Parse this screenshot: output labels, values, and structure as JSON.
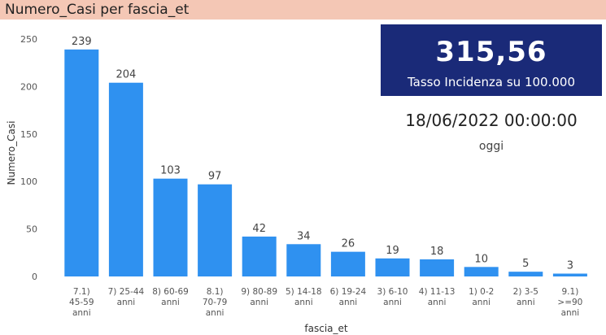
{
  "header": {
    "title": "Numero_Casi per fascia_et"
  },
  "kpi": {
    "value": "315,56",
    "label": "Tasso Incidenza su 100.000"
  },
  "date": {
    "value": "18/06/2022 00:00:00",
    "label": "oggi"
  },
  "colors": {
    "bar": "#2f91f0",
    "title_bg": "#f4c7b5",
    "kpi_bg": "#1a2a78"
  },
  "chart_data": {
    "type": "bar",
    "title": "",
    "xlabel": "fascia_et",
    "ylabel": "Numero_Casi",
    "ylim": [
      0,
      250
    ],
    "yticks": [
      0,
      50,
      100,
      150,
      200,
      250
    ],
    "grid": false,
    "categories": [
      [
        "7.1)",
        "45-59",
        "anni"
      ],
      [
        "7) 25-44",
        "anni"
      ],
      [
        "8) 60-69",
        "anni"
      ],
      [
        "8.1)",
        "70-79",
        "anni"
      ],
      [
        "9) 80-89",
        "anni"
      ],
      [
        "5) 14-18",
        "anni"
      ],
      [
        "6) 19-24",
        "anni"
      ],
      [
        "3) 6-10",
        "anni"
      ],
      [
        "4) 11-13",
        "anni"
      ],
      [
        "1) 0-2",
        "anni"
      ],
      [
        "2) 3-5",
        "anni"
      ],
      [
        "9.1)",
        ">=90",
        "anni"
      ]
    ],
    "values": [
      239,
      204,
      103,
      97,
      42,
      34,
      26,
      19,
      18,
      10,
      5,
      3
    ]
  }
}
